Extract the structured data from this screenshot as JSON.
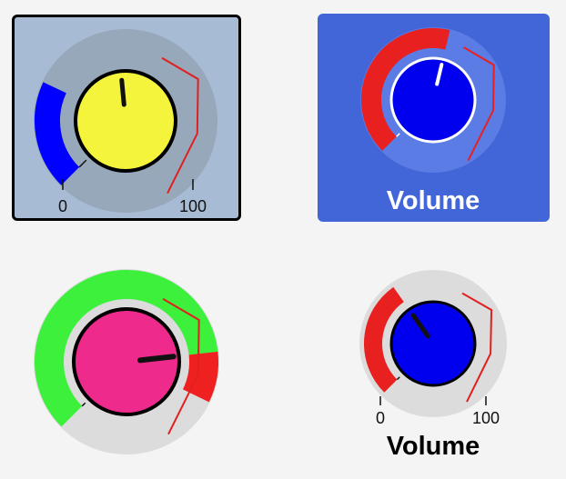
{
  "knobs": [
    {
      "id": "knob-1",
      "value_fraction": 0.48,
      "arc_fill_fraction": 0.26,
      "range_min": "0",
      "range_max": "100",
      "colors": {
        "panel": "#a8bbd5",
        "track": "#98a8bb",
        "arc": "#0000ff",
        "face": "#f4f43c",
        "pointer": "#111111",
        "marker": "#e02020"
      }
    },
    {
      "id": "knob-2",
      "value_fraction": 0.55,
      "title": "Volume",
      "colors": {
        "panel": "#4266d8",
        "track": "#5a7ce4",
        "arc": "#e82020",
        "face": "#0000ee",
        "pointer": "#ffffff",
        "marker": "#e82020"
      }
    },
    {
      "id": "knob-3",
      "value_fraction": 0.81,
      "colors": {
        "track": "#dcdcdc",
        "arc": "#3cf03c",
        "arc_end": "#ee2020",
        "face": "#ee2a8c",
        "pointer": "#111111",
        "marker": "#e02020"
      }
    },
    {
      "id": "knob-4",
      "value_fraction": 0.37,
      "range_min": "0",
      "range_max": "100",
      "title": "Volume",
      "colors": {
        "track": "#dcdcdc",
        "arc": "#e82020",
        "face": "#0000ee",
        "pointer": "#111111",
        "marker": "#e02020"
      }
    }
  ]
}
